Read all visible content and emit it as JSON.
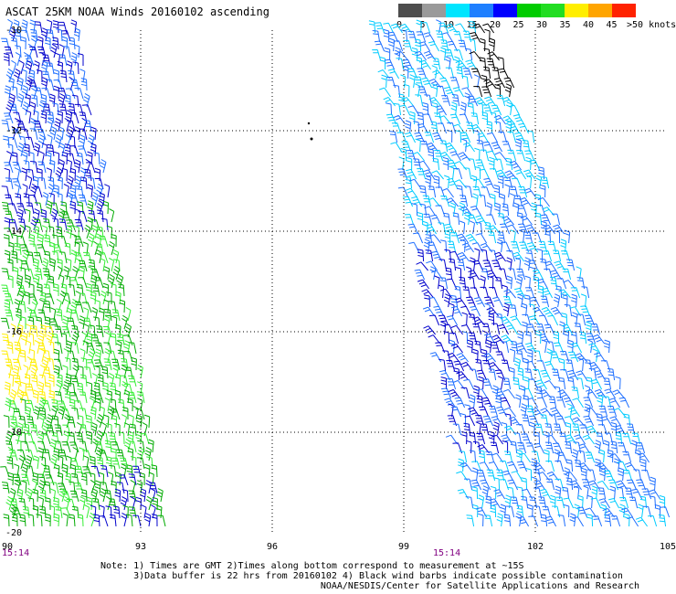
{
  "title": "ASCAT 25KM NOAA Winds 20160102 ascending",
  "legend": {
    "labels": [
      "0",
      "5",
      "10",
      "15",
      "20",
      "25",
      "30",
      "35",
      "40",
      "45",
      ">50 knots"
    ],
    "colors": [
      "#4d4d4d",
      "#9a9a9a",
      "#00e5ff",
      "#1e7fff",
      "#0000ff",
      "#00cc00",
      "#22dd22",
      "#ffee00",
      "#ffa500",
      "#ff2200",
      "#cc0000",
      "#800000",
      "#ff00ff",
      "#8800cc"
    ]
  },
  "axes": {
    "lat_labels": [
      "-10",
      "-12",
      "-14",
      "-16",
      "-18",
      "-20"
    ],
    "lon_labels": [
      "90",
      "93",
      "96",
      "99",
      "102",
      "105"
    ]
  },
  "times": {
    "left": "15:14",
    "right": "15:14"
  },
  "notes": [
    "Note: 1) Times are GMT 2)Times along bottom correspond to measurement at ~15S",
    "      3)Data buffer is 22 hrs from 20160102 4) Black wind barbs indicate possible contamination",
    "                                        NOAA/NESDIS/Center for Satellite Applications and Research"
  ],
  "colors": {
    "dark_blue": "#0000cc",
    "blue": "#1e6fff",
    "cyan": "#00ccff",
    "green": "#00aa00",
    "lime": "#33ee33",
    "yellow": "#ffee00",
    "black": "#000000",
    "time_label": "#800080"
  }
}
